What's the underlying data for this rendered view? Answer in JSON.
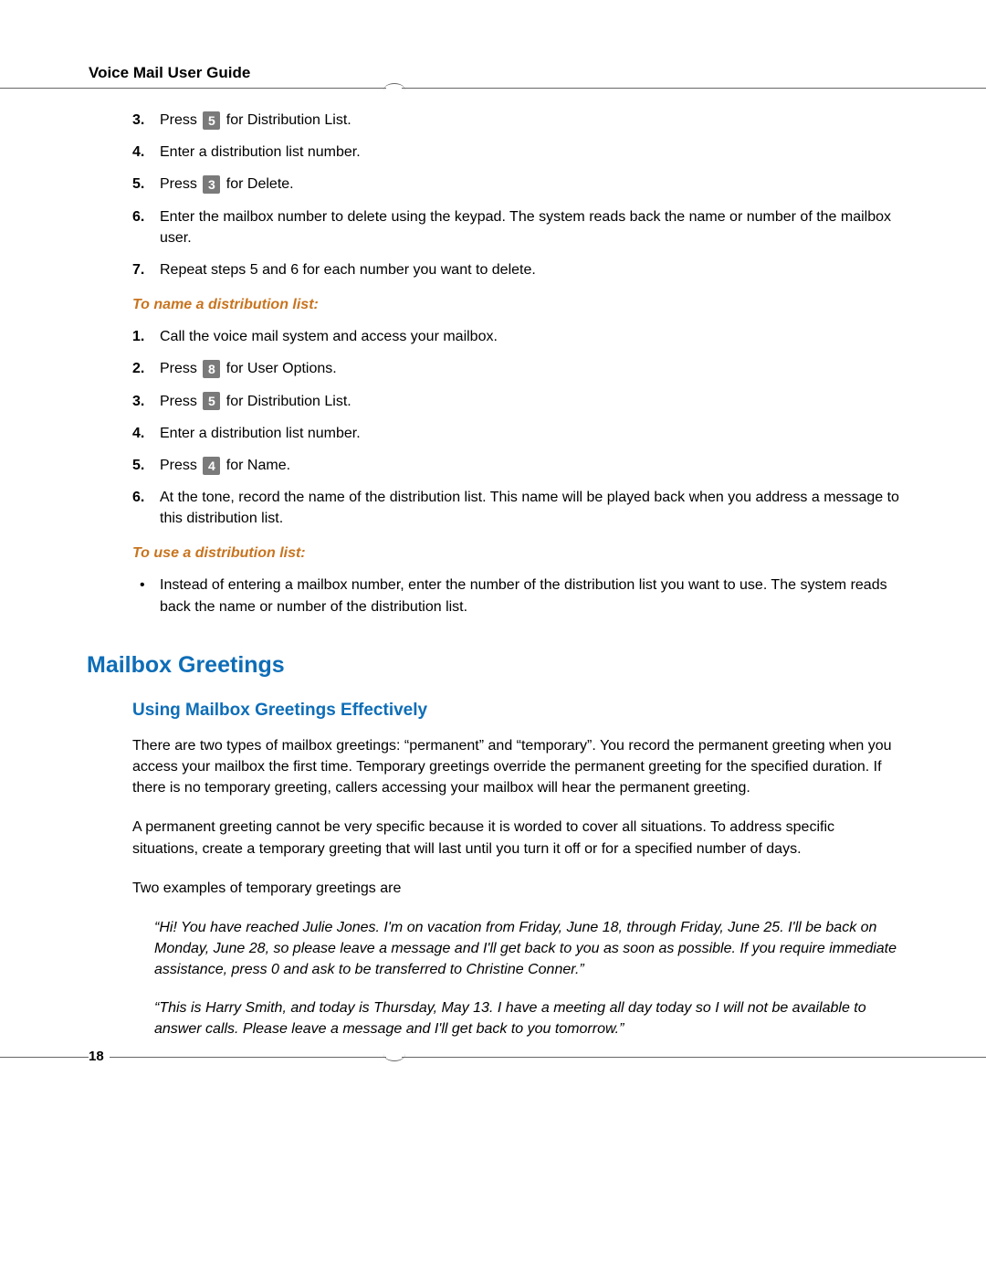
{
  "header": {
    "title": "Voice Mail User Guide"
  },
  "section1": {
    "items": [
      {
        "num": "3.",
        "before": "Press ",
        "key": "5",
        "after": " for Distribution List."
      },
      {
        "num": "4.",
        "text": "Enter a distribution list number."
      },
      {
        "num": "5.",
        "before": "Press ",
        "key": "3",
        "after": " for Delete."
      },
      {
        "num": "6.",
        "text": "Enter the mailbox number to delete using the keypad. The system reads back the name or number of the mailbox user."
      },
      {
        "num": "7.",
        "text": "Repeat steps 5 and 6 for each number you want to delete."
      }
    ]
  },
  "subhead1": "To name a distribution list:",
  "section2": {
    "items": [
      {
        "num": "1.",
        "text": "Call the voice mail system and access your mailbox."
      },
      {
        "num": "2.",
        "before": "Press ",
        "key": "8",
        "after": " for User Options."
      },
      {
        "num": "3.",
        "before": "Press ",
        "key": "5",
        "after": " for Distribution List."
      },
      {
        "num": "4.",
        "text": "Enter a distribution list number."
      },
      {
        "num": "5.",
        "before": "Press ",
        "key": "4",
        "after": " for Name."
      },
      {
        "num": "6.",
        "text": "At the tone, record the name of the distribution list. This name will be played back when you address a message to this distribution list."
      }
    ]
  },
  "subhead2": "To use a distribution list:",
  "section3": {
    "bullet": "Instead of entering a mailbox number, enter the number of the distribution list you want to use. The system reads back the name or number of the distribution list."
  },
  "h1": "Mailbox Greetings",
  "h2": "Using Mailbox Greetings Effectively",
  "para1": "There are two types of mailbox greetings: “permanent” and “temporary”. You record the permanent greeting when you access your mailbox the first time. Temporary greetings override the permanent greeting for the specified duration. If there is no temporary greeting, callers accessing your mailbox will hear the permanent greeting.",
  "para2": "A permanent greeting cannot be very specific because it is worded to cover all situations. To address specific situations, create a temporary greeting that will last until you turn it off or for a specified number of days.",
  "para3": "Two examples of temporary greetings are",
  "quote1": "“Hi! You have reached Julie Jones. I'm on vacation from Friday, June 18, through Friday, June 25. I'll be back on Monday, June 28, so please leave a message and I'll get back to you as soon as possible. If you require immediate assistance, press 0 and ask to be transferred to Christine Conner.”",
  "quote2": "“This is Harry Smith, and today is Thursday, May 13. I have a meeting all day today so I will not be available to answer calls. Please leave a message and I'll get back to you tomorrow.”",
  "page_number": "18"
}
